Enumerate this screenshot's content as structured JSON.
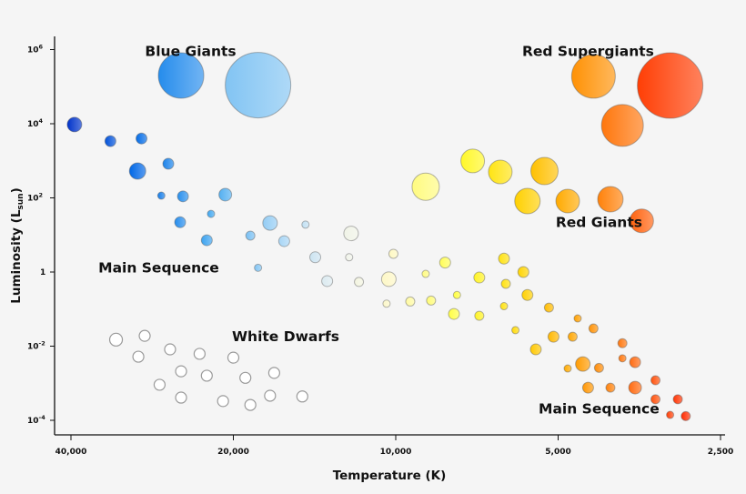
{
  "chart_data": {
    "type": "scatter",
    "xlabel": "Temperature (K)",
    "ylabel": {
      "main": "Luminosity (L",
      "sub": "sun",
      "close": ")"
    },
    "x_scale": "log-reversed",
    "y_scale": "log",
    "xlim": [
      42000,
      2400
    ],
    "ylim": [
      3e-05,
      2000000
    ],
    "x_ticks": [
      {
        "value": 40000,
        "label": "40,000"
      },
      {
        "value": 20000,
        "label": "20,000"
      },
      {
        "value": 10000,
        "label": "10,000"
      },
      {
        "value": 5000,
        "label": "5,000"
      },
      {
        "value": 2500,
        "label": "2,500"
      }
    ],
    "y_ticks": [
      {
        "value": 1000000,
        "base": "10",
        "exp": "6"
      },
      {
        "value": 10000,
        "base": "10",
        "exp": "4"
      },
      {
        "value": 100,
        "base": "10",
        "exp": "2"
      },
      {
        "value": 1,
        "base": "1",
        "exp": ""
      },
      {
        "value": 0.01,
        "base": "10",
        "exp": "-2"
      },
      {
        "value": 0.0001,
        "base": "10",
        "exp": "-4"
      }
    ],
    "grid": false,
    "annotations": [
      {
        "text": "Blue Giants",
        "T": 24000,
        "L": 900000
      },
      {
        "text": "Red Supergiants",
        "T": 4400,
        "L": 900000
      },
      {
        "text": "Red Giants",
        "T": 4200,
        "L": 22
      },
      {
        "text": "Main Sequence",
        "T": 27500,
        "L": 1.3
      },
      {
        "text": "White Dwarfs",
        "T": 16000,
        "L": 0.018
      },
      {
        "text": "Main Sequence",
        "T": 4200,
        "L": 0.0002
      }
    ],
    "color_scale": [
      {
        "T": 40000,
        "color": "#0030c8"
      },
      {
        "T": 30000,
        "color": "#0068e6"
      },
      {
        "T": 22000,
        "color": "#3fa6f0"
      },
      {
        "T": 16000,
        "color": "#a9d6f5"
      },
      {
        "T": 12500,
        "color": "#eef2ee"
      },
      {
        "T": 10000,
        "color": "#fff8c0"
      },
      {
        "T": 7500,
        "color": "#ffff30"
      },
      {
        "T": 5800,
        "color": "#ffd400"
      },
      {
        "T": 4600,
        "color": "#ffa000"
      },
      {
        "T": 3600,
        "color": "#ff6a10"
      },
      {
        "T": 2900,
        "color": "#ff2a00"
      }
    ],
    "white_dwarf_color": "#ffffff",
    "series": [
      {
        "group": "blue-giants",
        "points": [
          {
            "T": 25000,
            "L": 200000,
            "size": 25
          },
          {
            "T": 18000,
            "L": 110000,
            "size": 36
          }
        ]
      },
      {
        "group": "red-supergiants",
        "points": [
          {
            "T": 4300,
            "L": 190000,
            "size": 24
          },
          {
            "T": 3100,
            "L": 107000,
            "size": 36
          },
          {
            "T": 3800,
            "L": 9000,
            "size": 23
          }
        ]
      },
      {
        "group": "red-giants",
        "points": [
          {
            "T": 8800,
            "L": 200,
            "size": 15
          },
          {
            "T": 7200,
            "L": 990,
            "size": 13
          },
          {
            "T": 6400,
            "L": 500,
            "size": 13
          },
          {
            "T": 5300,
            "L": 530,
            "size": 15
          },
          {
            "T": 5700,
            "L": 82,
            "size": 14
          },
          {
            "T": 4800,
            "L": 82,
            "size": 13
          },
          {
            "T": 4000,
            "L": 92,
            "size": 14
          },
          {
            "T": 3500,
            "L": 24,
            "size": 13
          }
        ]
      },
      {
        "group": "main-sequence",
        "points": [
          {
            "T": 39400,
            "L": 9500,
            "size": 8
          },
          {
            "T": 33800,
            "L": 3400,
            "size": 6
          },
          {
            "T": 29600,
            "L": 4000,
            "size": 6
          },
          {
            "T": 30100,
            "L": 530,
            "size": 9
          },
          {
            "T": 26400,
            "L": 830,
            "size": 6
          },
          {
            "T": 27200,
            "L": 115,
            "size": 4
          },
          {
            "T": 24800,
            "L": 110,
            "size": 6
          },
          {
            "T": 20700,
            "L": 122,
            "size": 7
          },
          {
            "T": 25100,
            "L": 22,
            "size": 6
          },
          {
            "T": 22000,
            "L": 37,
            "size": 4
          },
          {
            "T": 22400,
            "L": 7.2,
            "size": 6
          },
          {
            "T": 18600,
            "L": 9.6,
            "size": 5
          },
          {
            "T": 17100,
            "L": 21,
            "size": 8
          },
          {
            "T": 16100,
            "L": 6.8,
            "size": 6
          },
          {
            "T": 18000,
            "L": 1.3,
            "size": 4
          },
          {
            "T": 14700,
            "L": 19,
            "size": 4
          },
          {
            "T": 14100,
            "L": 2.5,
            "size": 6
          },
          {
            "T": 13400,
            "L": 0.57,
            "size": 6
          },
          {
            "T": 12200,
            "L": 2.5,
            "size": 4
          },
          {
            "T": 12100,
            "L": 11,
            "size": 8
          },
          {
            "T": 11700,
            "L": 0.54,
            "size": 5
          },
          {
            "T": 10300,
            "L": 0.64,
            "size": 8
          },
          {
            "T": 10100,
            "L": 3.1,
            "size": 5
          },
          {
            "T": 10400,
            "L": 0.14,
            "size": 4
          },
          {
            "T": 9400,
            "L": 0.16,
            "size": 5
          },
          {
            "T": 8600,
            "L": 0.17,
            "size": 5
          },
          {
            "T": 8800,
            "L": 0.89,
            "size": 4
          },
          {
            "T": 8100,
            "L": 1.8,
            "size": 6
          },
          {
            "T": 7700,
            "L": 0.24,
            "size": 4
          },
          {
            "T": 7800,
            "L": 0.074,
            "size": 6
          },
          {
            "T": 7000,
            "L": 0.066,
            "size": 5
          },
          {
            "T": 7000,
            "L": 0.71,
            "size": 6
          },
          {
            "T": 6300,
            "L": 2.3,
            "size": 6
          },
          {
            "T": 6250,
            "L": 0.48,
            "size": 5
          },
          {
            "T": 6300,
            "L": 0.12,
            "size": 4
          },
          {
            "T": 5800,
            "L": 1.0,
            "size": 6
          },
          {
            "T": 5700,
            "L": 0.24,
            "size": 6
          },
          {
            "T": 6000,
            "L": 0.027,
            "size": 4
          },
          {
            "T": 5200,
            "L": 0.11,
            "size": 5
          },
          {
            "T": 5500,
            "L": 0.0082,
            "size": 6
          },
          {
            "T": 5100,
            "L": 0.018,
            "size": 6
          },
          {
            "T": 4600,
            "L": 0.056,
            "size": 4
          },
          {
            "T": 4300,
            "L": 0.03,
            "size": 5
          },
          {
            "T": 4700,
            "L": 0.018,
            "size": 5
          },
          {
            "T": 4800,
            "L": 0.0025,
            "size": 4
          },
          {
            "T": 4500,
            "L": 0.0033,
            "size": 8
          },
          {
            "T": 4200,
            "L": 0.0026,
            "size": 5
          },
          {
            "T": 3800,
            "L": 0.012,
            "size": 5
          },
          {
            "T": 3800,
            "L": 0.0047,
            "size": 4
          },
          {
            "T": 3600,
            "L": 0.0037,
            "size": 6
          },
          {
            "T": 4000,
            "L": 0.00076,
            "size": 5
          },
          {
            "T": 3600,
            "L": 0.00076,
            "size": 7
          },
          {
            "T": 4400,
            "L": 0.00076,
            "size": 6
          },
          {
            "T": 3300,
            "L": 0.0012,
            "size": 5
          },
          {
            "T": 3300,
            "L": 0.00037,
            "size": 5
          },
          {
            "T": 3000,
            "L": 0.00037,
            "size": 5
          },
          {
            "T": 3100,
            "L": 0.00014,
            "size": 4
          },
          {
            "T": 2900,
            "L": 0.00013,
            "size": 5
          }
        ]
      },
      {
        "group": "white-dwarfs",
        "points": [
          {
            "T": 33000,
            "L": 0.015,
            "size": 7
          },
          {
            "T": 29200,
            "L": 0.019,
            "size": 6
          },
          {
            "T": 30000,
            "L": 0.0052,
            "size": 6
          },
          {
            "T": 26200,
            "L": 0.0082,
            "size": 6
          },
          {
            "T": 23100,
            "L": 0.0062,
            "size": 6
          },
          {
            "T": 20000,
            "L": 0.0049,
            "size": 6
          },
          {
            "T": 25000,
            "L": 0.0021,
            "size": 6
          },
          {
            "T": 22400,
            "L": 0.0016,
            "size": 6
          },
          {
            "T": 19000,
            "L": 0.0014,
            "size": 6
          },
          {
            "T": 16800,
            "L": 0.0019,
            "size": 6
          },
          {
            "T": 27400,
            "L": 0.00091,
            "size": 6
          },
          {
            "T": 25000,
            "L": 0.00041,
            "size": 6
          },
          {
            "T": 20900,
            "L": 0.00033,
            "size": 6
          },
          {
            "T": 18600,
            "L": 0.00026,
            "size": 6
          },
          {
            "T": 17100,
            "L": 0.00046,
            "size": 6
          },
          {
            "T": 14900,
            "L": 0.00044,
            "size": 6
          }
        ]
      }
    ]
  }
}
